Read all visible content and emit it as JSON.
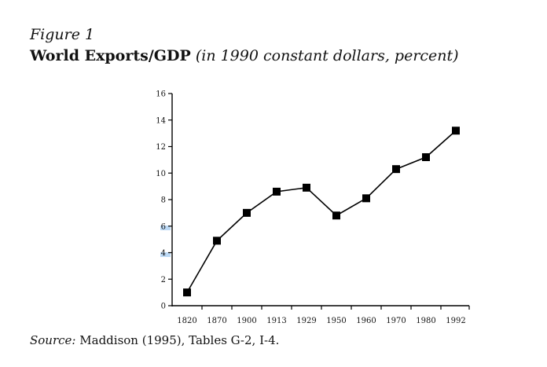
{
  "figure": {
    "label": "Figure 1",
    "title": "World Exports/GDP",
    "subtitle": "(in 1990 constant dollars, percent)"
  },
  "source": {
    "label": "Source:",
    "text": "Maddison (1995), Tables G-2, I-4."
  },
  "chart_data": {
    "type": "line",
    "title": "World Exports/GDP",
    "xlabel": "",
    "ylabel": "",
    "categories": [
      "1820",
      "1870",
      "1900",
      "1913",
      "1929",
      "1950",
      "1960",
      "1970",
      "1980",
      "1992"
    ],
    "values": [
      1.0,
      4.9,
      7.0,
      8.6,
      8.9,
      6.8,
      8.1,
      10.3,
      11.2,
      13.2
    ],
    "ylim": [
      0,
      16
    ],
    "yticks": [
      0,
      2,
      4,
      6,
      8,
      10,
      12,
      14,
      16
    ],
    "marker": "square",
    "grid": false,
    "line_color": "#000000"
  }
}
